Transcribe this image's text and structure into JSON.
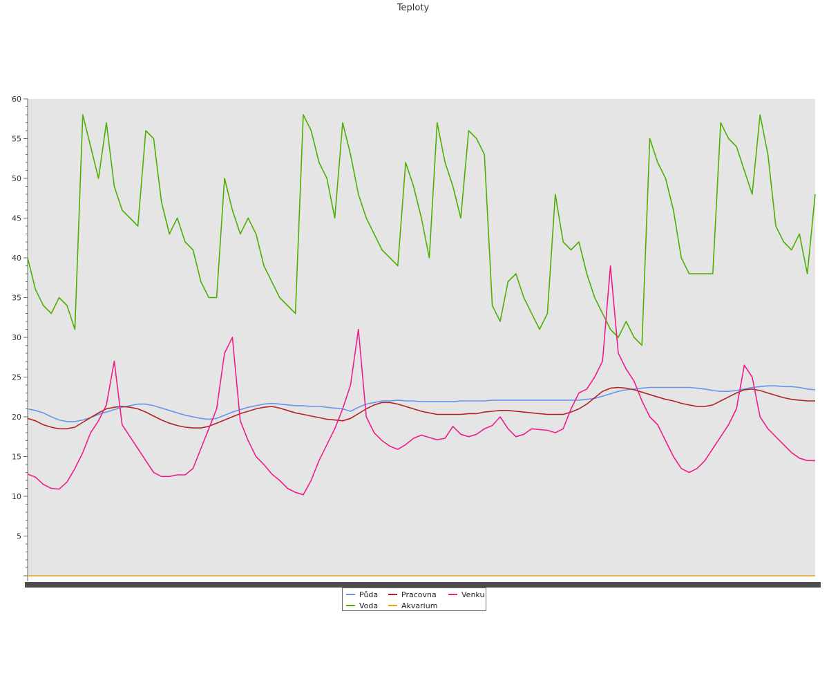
{
  "chart_data": {
    "type": "line",
    "title": "Teploty",
    "xlabel": "",
    "ylabel": "",
    "ylim": [
      0,
      60
    ],
    "y_ticks": [
      5,
      10,
      15,
      20,
      25,
      30,
      35,
      40,
      45,
      50,
      55,
      60
    ],
    "grid": false,
    "legend_position": "bottom-center",
    "x_ticks_note": "x-axis tick labels are densely overlapped and illegible",
    "x": [
      0,
      1,
      2,
      3,
      4,
      5,
      6,
      7,
      8,
      9,
      10,
      11,
      12,
      13,
      14,
      15,
      16,
      17,
      18,
      19,
      20,
      21,
      22,
      23,
      24,
      25,
      26,
      27,
      28,
      29,
      30,
      31,
      32,
      33,
      34,
      35,
      36,
      37,
      38,
      39,
      40,
      41,
      42,
      43,
      44,
      45,
      46,
      47,
      48,
      49,
      50,
      51,
      52,
      53,
      54,
      55,
      56,
      57,
      58,
      59,
      60,
      61,
      62,
      63,
      64,
      65,
      66,
      67,
      68,
      69,
      70,
      71,
      72,
      73,
      74,
      75,
      76,
      77,
      78,
      79,
      80,
      81,
      82,
      83,
      84,
      85,
      86,
      87,
      88,
      89,
      90,
      91,
      92,
      93,
      94,
      95,
      96,
      97,
      98,
      99,
      100
    ],
    "series": [
      {
        "name": "Půda",
        "color": "#6495ed",
        "values": [
          21.0,
          20.8,
          20.5,
          20.0,
          19.6,
          19.4,
          19.4,
          19.6,
          19.9,
          20.3,
          20.6,
          20.9,
          21.2,
          21.4,
          21.6,
          21.6,
          21.4,
          21.1,
          20.8,
          20.5,
          20.2,
          20.0,
          19.8,
          19.7,
          19.8,
          20.2,
          20.6,
          20.9,
          21.2,
          21.4,
          21.6,
          21.7,
          21.6,
          21.5,
          21.4,
          21.4,
          21.3,
          21.3,
          21.2,
          21.1,
          21.0,
          20.7,
          21.2,
          21.6,
          21.8,
          22.0,
          22.0,
          22.1,
          22.0,
          22.0,
          21.9,
          21.9,
          21.9,
          21.9,
          21.9,
          22.0,
          22.0,
          22.0,
          22.0,
          22.1,
          22.1,
          22.1,
          22.1,
          22.1,
          22.1,
          22.1,
          22.1,
          22.1,
          22.1,
          22.1,
          22.1,
          22.2,
          22.3,
          22.6,
          22.9,
          23.2,
          23.4,
          23.5,
          23.6,
          23.7,
          23.7,
          23.7,
          23.7,
          23.7,
          23.7,
          23.6,
          23.5,
          23.3,
          23.2,
          23.2,
          23.3,
          23.5,
          23.7,
          23.8,
          23.9,
          23.9,
          23.8,
          23.8,
          23.7,
          23.5,
          23.4
        ]
      },
      {
        "name": "Voda",
        "color": "#4caf00",
        "values": [
          40,
          36,
          34,
          33,
          35,
          34,
          31,
          58,
          54,
          50,
          57,
          49,
          46,
          45,
          44,
          56,
          55,
          47,
          43,
          45,
          42,
          41,
          37,
          35,
          35,
          50,
          46,
          43,
          45,
          43,
          39,
          37,
          35,
          34,
          33,
          58,
          56,
          52,
          50,
          45,
          57,
          53,
          48,
          45,
          43,
          41,
          40,
          39,
          52,
          49,
          45,
          40,
          57,
          52,
          49,
          45,
          56,
          55,
          53,
          34,
          32,
          37,
          38,
          35,
          33,
          31,
          33,
          48,
          42,
          41,
          42,
          38,
          35,
          33,
          31,
          30,
          32,
          30,
          29,
          55,
          52,
          50,
          46,
          40,
          38,
          38,
          38,
          38,
          57,
          55,
          54,
          51,
          48,
          58,
          53,
          44,
          42,
          41,
          43,
          38,
          48
        ]
      },
      {
        "name": "Pracovna",
        "color": "#b22222",
        "values": [
          19.8,
          19.5,
          19.0,
          18.7,
          18.5,
          18.5,
          18.7,
          19.3,
          19.9,
          20.5,
          21.0,
          21.2,
          21.3,
          21.2,
          21.0,
          20.6,
          20.1,
          19.6,
          19.2,
          18.9,
          18.7,
          18.6,
          18.6,
          18.8,
          19.2,
          19.6,
          20.0,
          20.4,
          20.7,
          21.0,
          21.2,
          21.3,
          21.1,
          20.8,
          20.5,
          20.3,
          20.1,
          19.9,
          19.7,
          19.6,
          19.5,
          19.8,
          20.4,
          21.0,
          21.5,
          21.8,
          21.8,
          21.6,
          21.3,
          21.0,
          20.7,
          20.5,
          20.3,
          20.3,
          20.3,
          20.3,
          20.4,
          20.4,
          20.6,
          20.7,
          20.8,
          20.8,
          20.7,
          20.6,
          20.5,
          20.4,
          20.3,
          20.3,
          20.3,
          20.6,
          21.0,
          21.6,
          22.4,
          23.2,
          23.6,
          23.7,
          23.6,
          23.4,
          23.1,
          22.8,
          22.5,
          22.2,
          22.0,
          21.7,
          21.5,
          21.3,
          21.3,
          21.5,
          22.0,
          22.5,
          23.0,
          23.4,
          23.5,
          23.3,
          23.0,
          22.7,
          22.4,
          22.2,
          22.1,
          22.0,
          22.0
        ]
      },
      {
        "name": "Akvarium",
        "color": "#e8a317",
        "values": [
          0,
          0,
          0,
          0,
          0,
          0,
          0,
          0,
          0,
          0,
          0,
          0,
          0,
          0,
          0,
          0,
          0,
          0,
          0,
          0,
          0,
          0,
          0,
          0,
          0,
          0,
          0,
          0,
          0,
          0,
          0,
          0,
          0,
          0,
          0,
          0,
          0,
          0,
          0,
          0,
          0,
          0,
          0,
          0,
          0,
          0,
          0,
          0,
          0,
          0,
          0,
          0,
          0,
          0,
          0,
          0,
          0,
          0,
          0,
          0,
          0,
          0,
          0,
          0,
          0,
          0,
          0,
          0,
          0,
          0,
          0,
          0,
          0,
          0,
          0,
          0,
          0,
          0,
          0,
          0,
          0,
          0,
          0,
          0,
          0,
          0,
          0,
          0,
          0,
          0,
          0,
          0,
          0,
          0,
          0,
          0,
          0,
          0,
          0,
          0,
          0
        ]
      },
      {
        "name": "Venku",
        "color": "#ee1c8c",
        "values": [
          12.8,
          12.4,
          11.5,
          11.0,
          10.9,
          11.8,
          13.5,
          15.5,
          18.0,
          19.5,
          21.5,
          27.0,
          19.0,
          17.5,
          16.0,
          14.5,
          13.0,
          12.5,
          12.5,
          12.7,
          12.7,
          13.5,
          16.0,
          18.5,
          21.0,
          28.0,
          30.0,
          19.5,
          17.0,
          15.0,
          14.0,
          12.8,
          12.0,
          11.0,
          10.5,
          10.2,
          12.0,
          14.5,
          16.5,
          18.5,
          21.0,
          24.0,
          31.0,
          20.0,
          18.0,
          17.0,
          16.3,
          15.9,
          16.5,
          17.3,
          17.7,
          17.4,
          17.1,
          17.3,
          18.8,
          17.8,
          17.5,
          17.8,
          18.5,
          18.9,
          20.0,
          18.5,
          17.5,
          17.8,
          18.5,
          18.4,
          18.3,
          18.0,
          18.5,
          21.0,
          23.0,
          23.5,
          25.0,
          27.0,
          39.0,
          28.0,
          26.0,
          24.5,
          22.0,
          20.0,
          19.0,
          17.0,
          15.0,
          13.5,
          13.0,
          13.5,
          14.5,
          16.0,
          17.5,
          19.0,
          21.0,
          26.5,
          25.0,
          20.0,
          18.5,
          17.5,
          16.5,
          15.5,
          14.8,
          14.5,
          14.5
        ]
      }
    ]
  }
}
